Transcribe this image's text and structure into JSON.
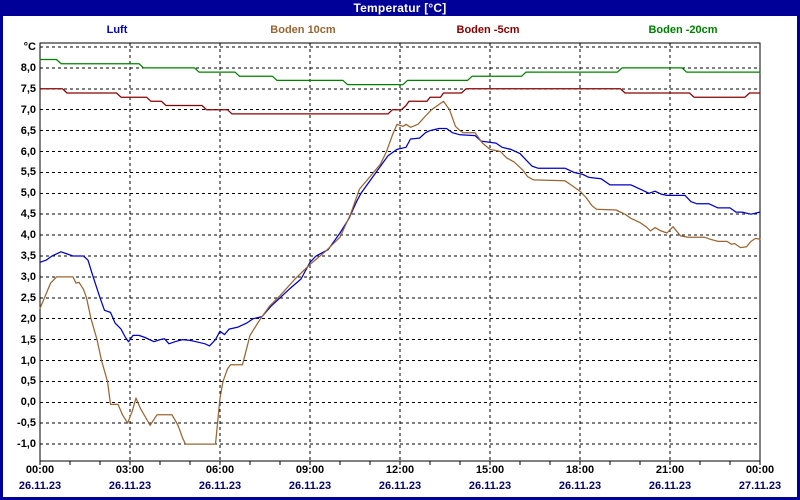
{
  "window": {
    "title": "Temperatur [°C]"
  },
  "colors": {
    "frame": "#000099",
    "title_text": "#ffffff",
    "plot_background": "#ffffff",
    "grid": "#000000",
    "time_label": "#000000",
    "date_label": "#000066"
  },
  "chart_data": {
    "type": "line",
    "title": "Temperatur [°C]",
    "grid": true,
    "legend_position": "top",
    "y_axis": {
      "unit_label": "°C",
      "min": -1.4,
      "max": 8.6,
      "grid_step": 0.5,
      "grid_min": -1.0,
      "grid_max": 8.5,
      "tick_values": [
        8.0,
        7.5,
        7.0,
        6.5,
        6.0,
        5.5,
        5.0,
        4.5,
        4.0,
        3.5,
        3.0,
        2.5,
        2.0,
        1.5,
        1.0,
        0.5,
        0.0,
        -0.5,
        -1.0
      ],
      "tick_labels": [
        "8,0",
        "7,5",
        "7,0",
        "6,5",
        "6,0",
        "5,5",
        "5,0",
        "4,5",
        "4,0",
        "3,5",
        "3,0",
        "2,5",
        "2,0",
        "1,5",
        "1,0",
        "0,5",
        "0,0",
        "-0,5",
        "-1,0"
      ]
    },
    "x_axis": {
      "unit": "hours",
      "range_h": [
        0,
        24
      ],
      "gridline_every_h": 3,
      "tick_every_h": 1,
      "labels": [
        {
          "time": "00:00",
          "date": "26.11.23"
        },
        {
          "time": "03:00",
          "date": "26.11.23"
        },
        {
          "time": "06:00",
          "date": "26.11.23"
        },
        {
          "time": "09:00",
          "date": "26.11.23"
        },
        {
          "time": "12:00",
          "date": "26.11.23"
        },
        {
          "time": "15:00",
          "date": "26.11.23"
        },
        {
          "time": "18:00",
          "date": "26.11.23"
        },
        {
          "time": "21:00",
          "date": "26.11.23"
        },
        {
          "time": "00:00",
          "date": "27.11.23"
        }
      ]
    },
    "series": [
      {
        "name": "Luft",
        "color": "#0000CC",
        "points": [
          [
            0,
            3.35
          ],
          [
            0.2,
            3.4
          ],
          [
            0.4,
            3.5
          ],
          [
            0.7,
            3.6
          ],
          [
            0.9,
            3.55
          ],
          [
            1.1,
            3.5
          ],
          [
            1.45,
            3.5
          ],
          [
            1.6,
            3.4
          ],
          [
            1.75,
            3.05
          ],
          [
            2.0,
            2.5
          ],
          [
            2.15,
            2.2
          ],
          [
            2.35,
            2.15
          ],
          [
            2.5,
            1.9
          ],
          [
            2.7,
            1.75
          ],
          [
            2.85,
            1.55
          ],
          [
            2.95,
            1.45
          ],
          [
            3.1,
            1.6
          ],
          [
            3.3,
            1.6
          ],
          [
            3.5,
            1.55
          ],
          [
            3.8,
            1.45
          ],
          [
            4.0,
            1.5
          ],
          [
            4.15,
            1.52
          ],
          [
            4.3,
            1.4
          ],
          [
            4.5,
            1.45
          ],
          [
            4.75,
            1.5
          ],
          [
            5.0,
            1.48
          ],
          [
            5.2,
            1.45
          ],
          [
            5.5,
            1.4
          ],
          [
            5.65,
            1.35
          ],
          [
            5.85,
            1.5
          ],
          [
            6.0,
            1.7
          ],
          [
            6.15,
            1.62
          ],
          [
            6.3,
            1.75
          ],
          [
            6.6,
            1.8
          ],
          [
            6.9,
            1.9
          ],
          [
            7.1,
            2.0
          ],
          [
            7.4,
            2.05
          ],
          [
            7.7,
            2.3
          ],
          [
            8.0,
            2.5
          ],
          [
            8.3,
            2.7
          ],
          [
            8.7,
            2.95
          ],
          [
            9.0,
            3.35
          ],
          [
            9.2,
            3.5
          ],
          [
            9.6,
            3.65
          ],
          [
            10.0,
            4.05
          ],
          [
            10.3,
            4.4
          ],
          [
            10.55,
            4.8
          ],
          [
            10.7,
            5.0
          ],
          [
            11.0,
            5.3
          ],
          [
            11.3,
            5.6
          ],
          [
            11.6,
            5.9
          ],
          [
            11.9,
            6.05
          ],
          [
            12.2,
            6.1
          ],
          [
            12.35,
            6.3
          ],
          [
            12.65,
            6.32
          ],
          [
            12.85,
            6.45
          ],
          [
            13.0,
            6.5
          ],
          [
            13.3,
            6.55
          ],
          [
            13.55,
            6.55
          ],
          [
            13.75,
            6.45
          ],
          [
            14.0,
            6.4
          ],
          [
            14.5,
            6.38
          ],
          [
            14.7,
            6.25
          ],
          [
            15.2,
            6.2
          ],
          [
            15.4,
            6.1
          ],
          [
            15.7,
            6.05
          ],
          [
            16.0,
            5.95
          ],
          [
            16.2,
            5.8
          ],
          [
            16.4,
            5.65
          ],
          [
            16.6,
            5.6
          ],
          [
            17.5,
            5.6
          ],
          [
            17.8,
            5.5
          ],
          [
            18.1,
            5.45
          ],
          [
            18.3,
            5.38
          ],
          [
            18.7,
            5.35
          ],
          [
            19.0,
            5.2
          ],
          [
            19.7,
            5.2
          ],
          [
            20.0,
            5.1
          ],
          [
            20.3,
            5.0
          ],
          [
            20.5,
            5.05
          ],
          [
            20.7,
            4.98
          ],
          [
            20.9,
            4.95
          ],
          [
            21.5,
            4.95
          ],
          [
            21.7,
            4.8
          ],
          [
            21.9,
            4.75
          ],
          [
            22.3,
            4.75
          ],
          [
            22.6,
            4.65
          ],
          [
            23.0,
            4.65
          ],
          [
            23.2,
            4.55
          ],
          [
            23.4,
            4.55
          ],
          [
            23.7,
            4.5
          ],
          [
            24,
            4.55
          ]
        ]
      },
      {
        "name": "Boden 10cm",
        "color": "#996633",
        "points": [
          [
            0,
            2.25
          ],
          [
            0.15,
            2.5
          ],
          [
            0.35,
            2.85
          ],
          [
            0.55,
            3.0
          ],
          [
            1.1,
            3.0
          ],
          [
            1.2,
            2.85
          ],
          [
            1.3,
            2.87
          ],
          [
            1.45,
            2.7
          ],
          [
            1.55,
            2.5
          ],
          [
            1.7,
            2.0
          ],
          [
            1.9,
            1.5
          ],
          [
            2.05,
            1.0
          ],
          [
            2.25,
            0.5
          ],
          [
            2.35,
            -0.05
          ],
          [
            2.6,
            -0.05
          ],
          [
            2.75,
            -0.3
          ],
          [
            2.92,
            -0.5
          ],
          [
            3.08,
            -0.2
          ],
          [
            3.2,
            0.1
          ],
          [
            3.35,
            -0.15
          ],
          [
            3.55,
            -0.4
          ],
          [
            3.67,
            -0.55
          ],
          [
            3.9,
            -0.3
          ],
          [
            4.4,
            -0.3
          ],
          [
            4.6,
            -0.55
          ],
          [
            4.75,
            -0.85
          ],
          [
            4.85,
            -1.0
          ],
          [
            5.85,
            -1.0
          ],
          [
            6.0,
            0.1
          ],
          [
            6.1,
            0.5
          ],
          [
            6.25,
            0.8
          ],
          [
            6.35,
            0.9
          ],
          [
            6.75,
            0.9
          ],
          [
            7.0,
            1.6
          ],
          [
            7.35,
            2.0
          ],
          [
            7.65,
            2.3
          ],
          [
            8.0,
            2.55
          ],
          [
            8.5,
            2.95
          ],
          [
            9.0,
            3.3
          ],
          [
            9.5,
            3.6
          ],
          [
            10.0,
            3.95
          ],
          [
            10.35,
            4.5
          ],
          [
            10.65,
            5.1
          ],
          [
            11.0,
            5.4
          ],
          [
            11.35,
            5.7
          ],
          [
            11.55,
            6.0
          ],
          [
            11.75,
            6.4
          ],
          [
            11.9,
            6.65
          ],
          [
            12.1,
            6.6
          ],
          [
            12.2,
            6.65
          ],
          [
            12.35,
            6.58
          ],
          [
            12.6,
            6.65
          ],
          [
            12.85,
            6.85
          ],
          [
            13.05,
            7.0
          ],
          [
            13.25,
            7.1
          ],
          [
            13.45,
            7.2
          ],
          [
            13.65,
            7.0
          ],
          [
            13.85,
            6.6
          ],
          [
            14.0,
            6.5
          ],
          [
            14.1,
            6.45
          ],
          [
            14.5,
            6.45
          ],
          [
            14.75,
            6.2
          ],
          [
            15.0,
            6.05
          ],
          [
            15.35,
            6.0
          ],
          [
            15.55,
            5.85
          ],
          [
            15.8,
            5.75
          ],
          [
            16.0,
            5.62
          ],
          [
            16.1,
            5.55
          ],
          [
            16.25,
            5.4
          ],
          [
            16.45,
            5.32
          ],
          [
            17.5,
            5.3
          ],
          [
            17.7,
            5.2
          ],
          [
            18.0,
            5.05
          ],
          [
            18.2,
            4.9
          ],
          [
            18.4,
            4.7
          ],
          [
            18.55,
            4.62
          ],
          [
            19.2,
            4.6
          ],
          [
            19.5,
            4.5
          ],
          [
            19.7,
            4.4
          ],
          [
            20.0,
            4.3
          ],
          [
            20.2,
            4.2
          ],
          [
            20.35,
            4.1
          ],
          [
            20.5,
            4.18
          ],
          [
            20.7,
            4.1
          ],
          [
            20.9,
            4.05
          ],
          [
            21.1,
            4.2
          ],
          [
            21.35,
            3.98
          ],
          [
            21.6,
            3.95
          ],
          [
            22.15,
            3.95
          ],
          [
            22.35,
            3.9
          ],
          [
            22.6,
            3.85
          ],
          [
            22.9,
            3.85
          ],
          [
            23.05,
            3.78
          ],
          [
            23.15,
            3.8
          ],
          [
            23.35,
            3.7
          ],
          [
            23.55,
            3.72
          ],
          [
            23.7,
            3.85
          ],
          [
            23.85,
            3.92
          ],
          [
            24,
            3.9
          ]
        ]
      },
      {
        "name": "Boden -5cm",
        "color": "#8B0000",
        "points": [
          [
            0,
            7.5
          ],
          [
            0.75,
            7.5
          ],
          [
            0.9,
            7.4
          ],
          [
            2.55,
            7.4
          ],
          [
            2.7,
            7.3
          ],
          [
            3.55,
            7.3
          ],
          [
            3.7,
            7.2
          ],
          [
            4.05,
            7.2
          ],
          [
            4.2,
            7.1
          ],
          [
            5.4,
            7.1
          ],
          [
            5.55,
            7.0
          ],
          [
            6.25,
            7.0
          ],
          [
            6.4,
            6.9
          ],
          [
            11.6,
            6.9
          ],
          [
            11.75,
            7.0
          ],
          [
            12.05,
            7.0
          ],
          [
            12.2,
            7.1
          ],
          [
            12.3,
            7.2
          ],
          [
            12.9,
            7.2
          ],
          [
            13.0,
            7.3
          ],
          [
            13.35,
            7.3
          ],
          [
            13.45,
            7.4
          ],
          [
            14.05,
            7.4
          ],
          [
            14.2,
            7.5
          ],
          [
            19.35,
            7.5
          ],
          [
            19.5,
            7.4
          ],
          [
            21.65,
            7.4
          ],
          [
            21.8,
            7.3
          ],
          [
            23.5,
            7.3
          ],
          [
            23.65,
            7.4
          ],
          [
            24,
            7.4
          ]
        ]
      },
      {
        "name": "Boden -20cm",
        "color": "#008000",
        "points": [
          [
            0,
            8.2
          ],
          [
            0.55,
            8.2
          ],
          [
            0.7,
            8.1
          ],
          [
            3.3,
            8.1
          ],
          [
            3.45,
            8.0
          ],
          [
            5.15,
            8.0
          ],
          [
            5.3,
            7.9
          ],
          [
            6.5,
            7.9
          ],
          [
            6.65,
            7.8
          ],
          [
            7.75,
            7.8
          ],
          [
            7.9,
            7.7
          ],
          [
            10.1,
            7.7
          ],
          [
            10.25,
            7.6
          ],
          [
            12.1,
            7.6
          ],
          [
            12.25,
            7.7
          ],
          [
            14.25,
            7.7
          ],
          [
            14.4,
            7.8
          ],
          [
            16.05,
            7.8
          ],
          [
            16.2,
            7.9
          ],
          [
            19.25,
            7.9
          ],
          [
            19.4,
            8.0
          ],
          [
            21.4,
            8.0
          ],
          [
            21.55,
            7.9
          ],
          [
            24,
            7.9
          ]
        ]
      }
    ]
  }
}
